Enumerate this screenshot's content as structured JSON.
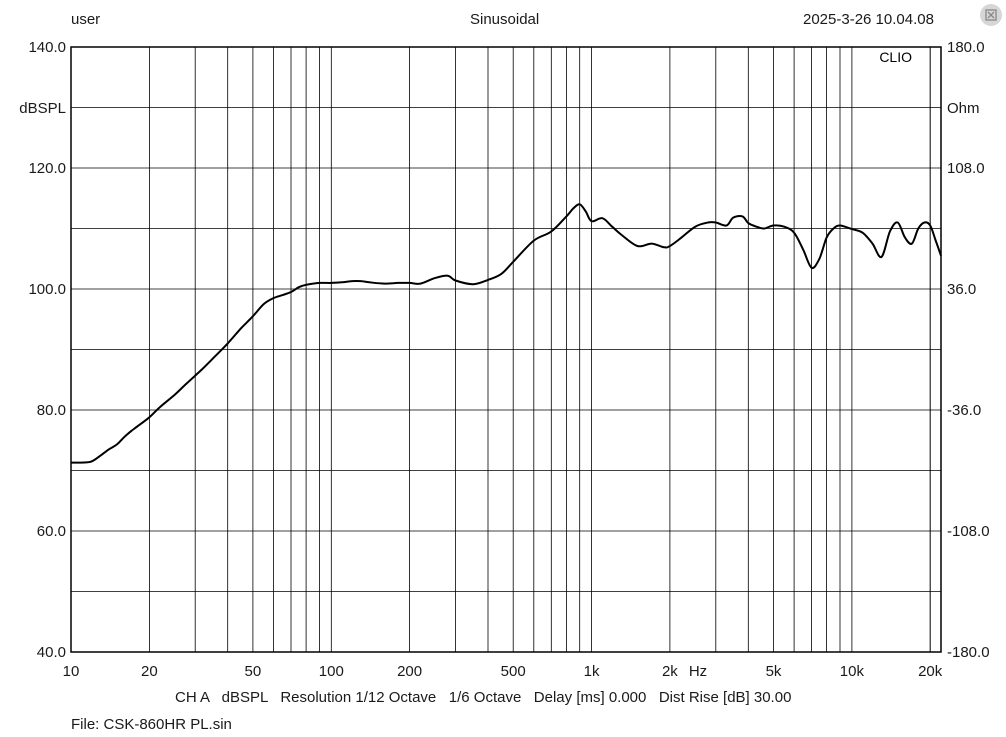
{
  "header": {
    "user": "user",
    "mode": "Sinusoidal",
    "datetime": "2025-3-26 10.04.08"
  },
  "brand": "CLIO",
  "footer": {
    "text": "CH A   dBSPL   Resolution 1/12 Octave   1/6 Octave   Delay [ms] 0.000   Dist Rise [dB] 30.00",
    "file": "File: CSK-860HR PL.sin"
  },
  "corner_icon": "expand-icon",
  "chart_data": {
    "type": "line",
    "title": "",
    "xlabel": "Hz",
    "ylabel": "dBSPL",
    "y2label": "Ohm",
    "xscale": "log",
    "xlim": [
      10,
      22000
    ],
    "ylim": [
      40,
      140
    ],
    "y2lim": [
      -180,
      180
    ],
    "grid": true,
    "x_ticks": [
      10,
      20,
      50,
      100,
      200,
      500,
      1000,
      2000,
      5000,
      10000,
      20000
    ],
    "x_tick_labels": [
      "10",
      "20",
      "50",
      "100",
      "200",
      "500",
      "1k",
      "2k",
      "5k",
      "10k",
      "20k"
    ],
    "y_tick_labels": [
      "40.0",
      "60.0",
      "80.0",
      "100.0",
      "120.0",
      "140.0"
    ],
    "y2_tick_labels": [
      "-180.0",
      "-108.0",
      "-36.0",
      "36.0",
      "108.0",
      "180.0"
    ],
    "series": [
      {
        "color": "#000000",
        "x": [
          10,
          11,
          12,
          13,
          14,
          15,
          16,
          17,
          18,
          20,
          22,
          25,
          28,
          32,
          36,
          40,
          45,
          50,
          55,
          60,
          65,
          70,
          75,
          80,
          90,
          100,
          110,
          120,
          130,
          140,
          160,
          180,
          200,
          220,
          250,
          280,
          300,
          350,
          400,
          450,
          500,
          600,
          700,
          800,
          850,
          900,
          950,
          1000,
          1100,
          1200,
          1300,
          1500,
          1700,
          1900,
          2000,
          2200,
          2500,
          2800,
          3000,
          3300,
          3500,
          3800,
          4000,
          4300,
          4600,
          5000,
          5500,
          6000,
          6500,
          7000,
          7500,
          8000,
          8500,
          9000,
          10000,
          11000,
          12000,
          13000,
          14000,
          15000,
          16000,
          17000,
          18000,
          19000,
          20000,
          21000,
          22000
        ],
        "values": [
          71.3,
          71.3,
          71.5,
          72.5,
          73.5,
          74.3,
          75.5,
          76.5,
          77.3,
          78.8,
          80.5,
          82.5,
          84.5,
          86.8,
          89,
          91,
          93.5,
          95.5,
          97.5,
          98.5,
          99,
          99.5,
          100.3,
          100.7,
          101,
          101,
          101.1,
          101.3,
          101.3,
          101.1,
          100.9,
          101,
          101,
          100.9,
          101.8,
          102.2,
          101.4,
          100.8,
          101.5,
          102.5,
          104.5,
          108,
          109.5,
          112,
          113.3,
          114,
          112.8,
          111.2,
          111.7,
          110.3,
          109,
          107.1,
          107.5,
          106.9,
          107.1,
          108.4,
          110.3,
          111,
          111,
          110.5,
          111.8,
          112,
          110.9,
          110.3,
          110,
          110.5,
          110.3,
          109.3,
          106.5,
          103.5,
          105,
          108.5,
          110,
          110.5,
          109.9,
          109.3,
          107.5,
          105.3,
          109.5,
          111,
          108.5,
          107.5,
          110,
          111,
          110.5,
          108,
          105.5
        ]
      }
    ]
  }
}
